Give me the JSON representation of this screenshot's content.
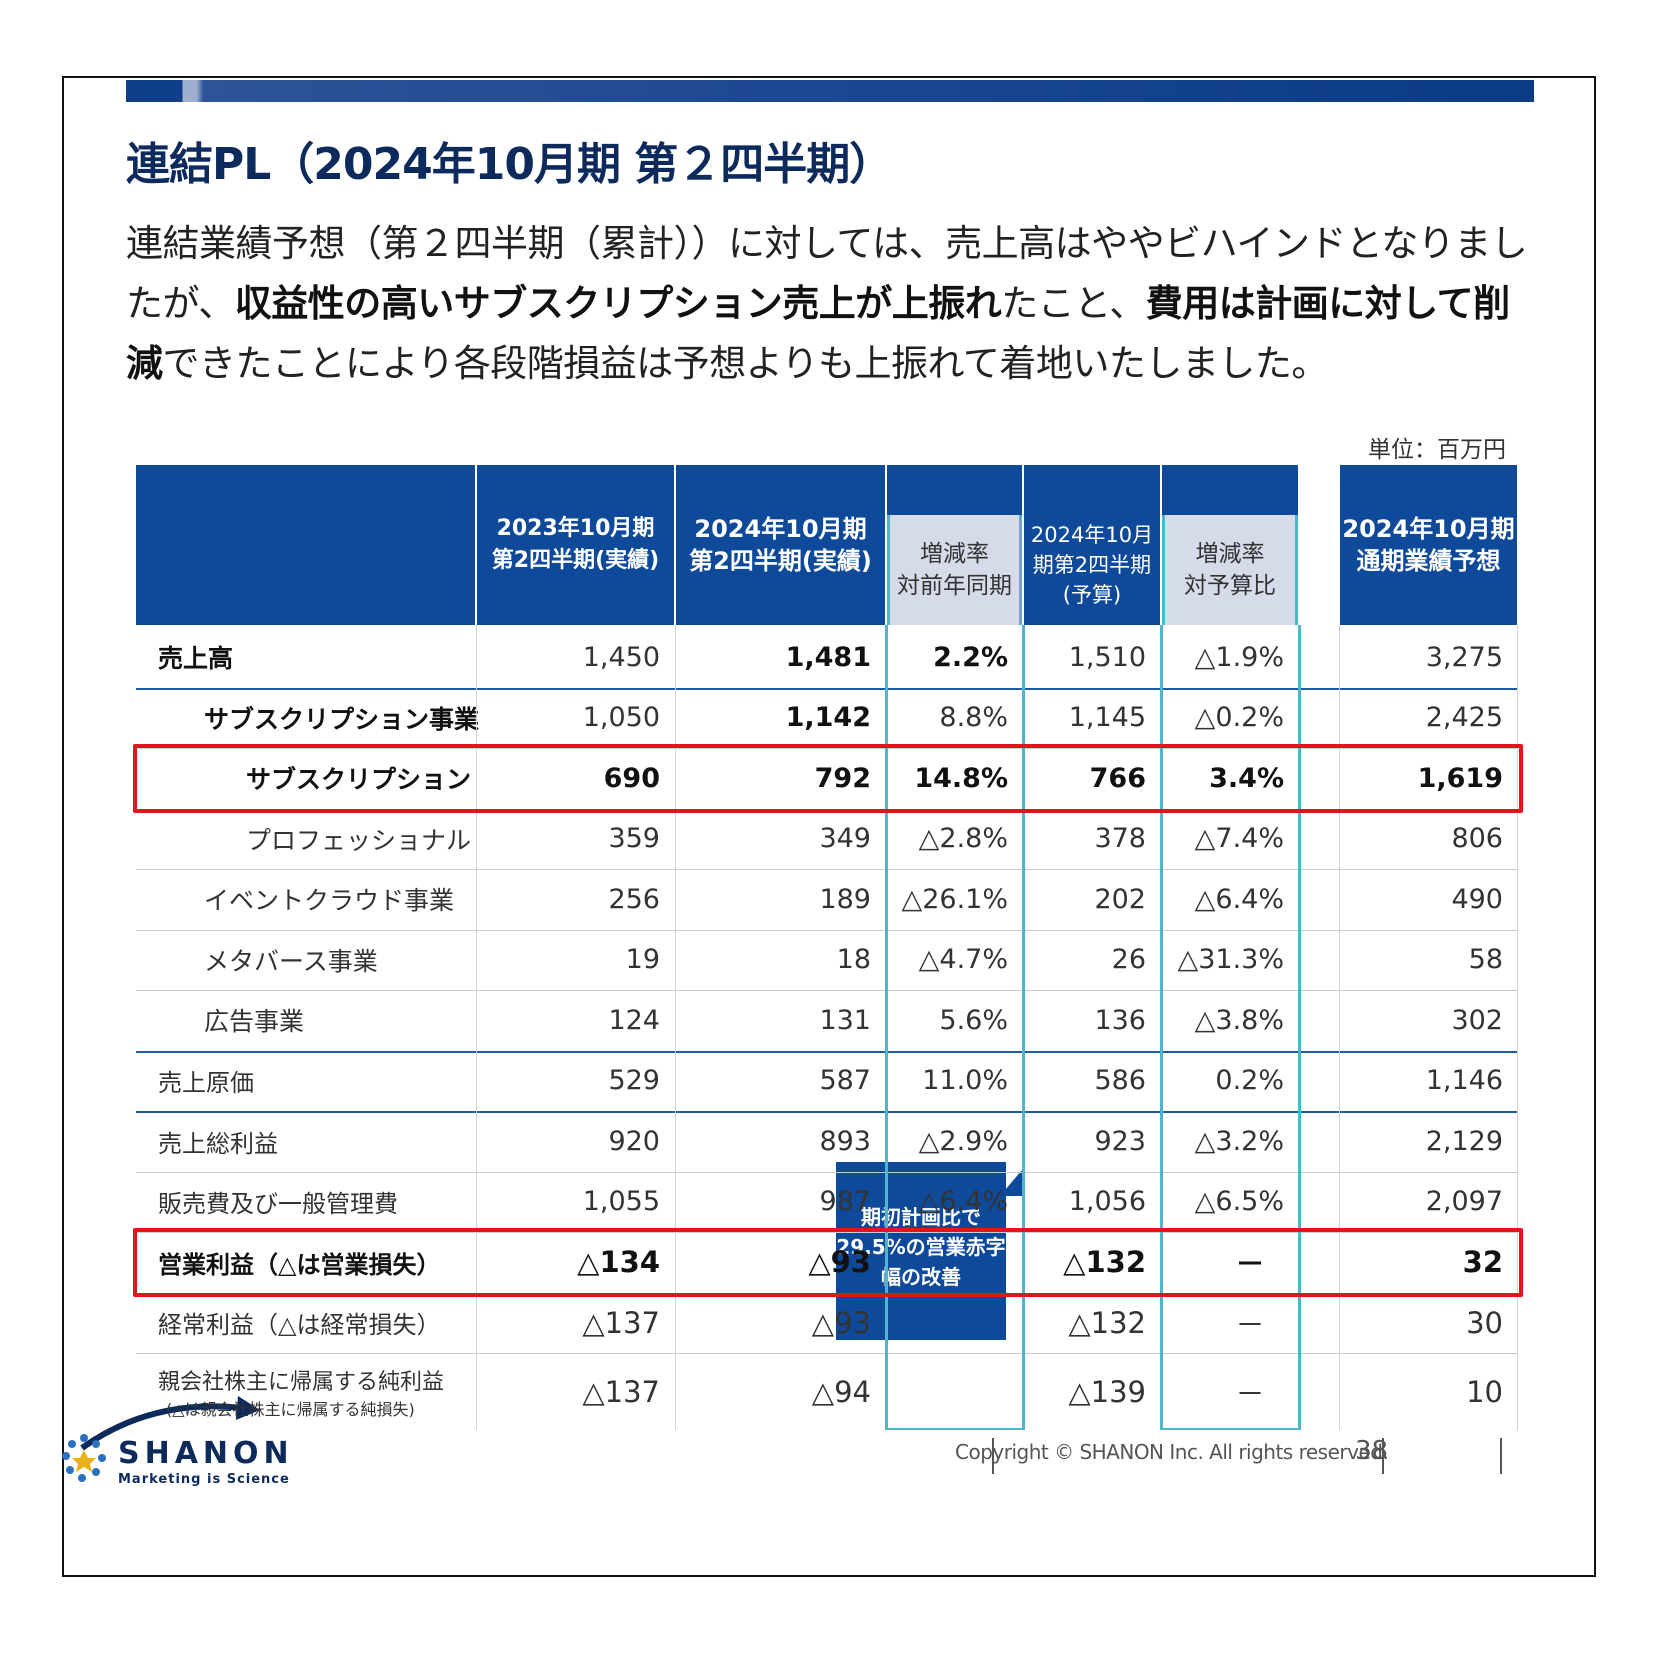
{
  "title": "連結PL（2024年10月期 第２四半期）",
  "lead": {
    "p1": "連結業績予想（第２四半期（累計））に対しては、売上高はややビハインドとなりましたが、",
    "b1": "収益性の高いサブスクリプション売上が上振れ",
    "p2": "たこと、",
    "b2": "費用は計画に対して削減",
    "p3": "できたことにより各段階損益は予想よりも上振れて着地いたしました。"
  },
  "unit": "単位：百万円",
  "headers": {
    "h1_line1": "2023年10月期",
    "h1_line2": "第2四半期(実績)",
    "h2_line1": "2024年10月期",
    "h2_line2": "第2四半期(実績)",
    "h3_line1": "増減率",
    "h3_line2": "対前年同期",
    "h4_line1": "2024年10月",
    "h4_line2": "期第2四半期",
    "h4_line3": "(予算)",
    "h5_line1": "増減率",
    "h5_line2": "対予算比",
    "h6_line1": "2024年10月期",
    "h6_line2": "通期業績予想"
  },
  "rows": [
    {
      "label": "売上高",
      "c1": "1,450",
      "c2": "1,481",
      "c3": "2.2%",
      "c4": "1,510",
      "c5": "△1.9%",
      "c6": "3,275"
    },
    {
      "label": "サブスクリプション事業",
      "c1": "1,050",
      "c2": "1,142",
      "c3": "8.8%",
      "c4": "1,145",
      "c5": "△0.2%",
      "c6": "2,425"
    },
    {
      "label": "サブスクリプション",
      "c1": "690",
      "c2": "792",
      "c3": "14.8%",
      "c4": "766",
      "c5": "3.4%",
      "c6": "1,619"
    },
    {
      "label": "プロフェッショナル",
      "c1": "359",
      "c2": "349",
      "c3": "△2.8%",
      "c4": "378",
      "c5": "△7.4%",
      "c6": "806"
    },
    {
      "label": "イベントクラウド事業",
      "c1": "256",
      "c2": "189",
      "c3": "△26.1%",
      "c4": "202",
      "c5": "△6.4%",
      "c6": "490"
    },
    {
      "label": "メタバース事業",
      "c1": "19",
      "c2": "18",
      "c3": "△4.7%",
      "c4": "26",
      "c5": "△31.3%",
      "c6": "58"
    },
    {
      "label": "広告事業",
      "c1": "124",
      "c2": "131",
      "c3": "5.6%",
      "c4": "136",
      "c5": "△3.8%",
      "c6": "302"
    },
    {
      "label": "売上原価",
      "c1": "529",
      "c2": "587",
      "c3": "11.0%",
      "c4": "586",
      "c5": "0.2%",
      "c6": "1,146"
    },
    {
      "label": "売上総利益",
      "c1": "920",
      "c2": "893",
      "c3": "△2.9%",
      "c4": "923",
      "c5": "△3.2%",
      "c6": "2,129"
    },
    {
      "label": "販売費及び一般管理費",
      "c1": "1,055",
      "c2": "987",
      "c3": "△6.4%",
      "c4": "1,056",
      "c5": "△6.5%",
      "c6": "2,097"
    },
    {
      "label": "営業利益（△は営業損失）",
      "c1": "△134",
      "c2": "△93",
      "c3": "",
      "c4": "△132",
      "c5": "－",
      "c6": "32"
    },
    {
      "label": "経常利益（△は経常損失）",
      "c1": "△137",
      "c2": "△93",
      "c3": "",
      "c4": "△132",
      "c5": "－",
      "c6": "30"
    },
    {
      "label": "親会社株主に帰属する純利益",
      "sublabel": "(△は親会社株主に帰属する純損失)",
      "c1": "△137",
      "c2": "△94",
      "c3": "",
      "c4": "△139",
      "c5": "－",
      "c6": "10"
    }
  ],
  "callout": {
    "line1": "期初計画比で",
    "line2": "29.5%の営業赤字",
    "line3": "幅の改善"
  },
  "footer": {
    "copyright": "Copyright © SHANON Inc. All rights reserved.",
    "page": "38"
  },
  "logo": {
    "name": "SHANON",
    "tagline": "Marketing is Science"
  },
  "colors": {
    "header_blue": "#0f4a9a",
    "highlight_red": "#e3141b",
    "accent_cyan": "#4fb6c9"
  }
}
